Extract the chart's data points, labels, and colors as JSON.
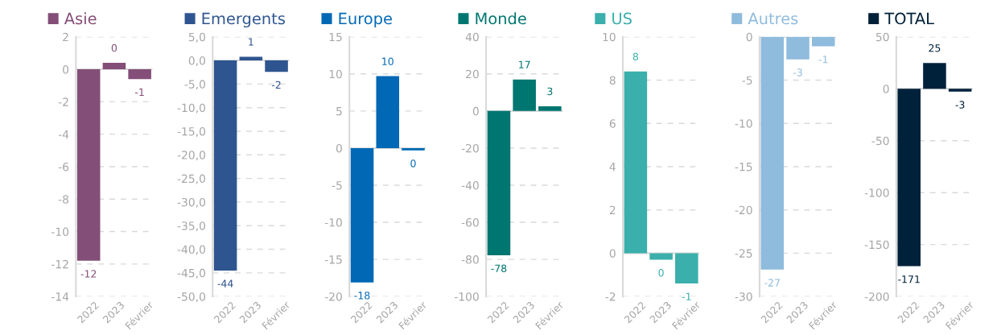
{
  "chart_data": [
    {
      "type": "bar",
      "categories": [
        "2022",
        "2023",
        "Février"
      ],
      "series": [
        {
          "name": "Asie",
          "color": "#834e77",
          "values": [
            -11.8,
            0.4,
            -0.6
          ],
          "value_labels": [
            "-12",
            "0",
            "-1"
          ]
        }
      ],
      "ylim": [
        -14,
        2
      ],
      "yticks": [
        -14,
        -12,
        -10,
        -8,
        -6,
        -4,
        -2,
        0,
        2
      ],
      "grid": "y",
      "legend": "top"
    },
    {
      "type": "bar",
      "categories": [
        "2022",
        "2023",
        "Février"
      ],
      "series": [
        {
          "name": "Emergents",
          "color": "#2f5590",
          "values": [
            -44.5,
            0.8,
            -2.4
          ],
          "value_labels": [
            "-44",
            "1",
            "-2"
          ]
        }
      ],
      "ylim": [
        -50,
        5
      ],
      "yticks": [
        {
          "value": -50,
          "label": "-50,0"
        },
        {
          "value": -45,
          "label": "-45,0"
        },
        {
          "value": -40,
          "label": "-40,0"
        },
        {
          "value": -35,
          "label": "-35,0"
        },
        {
          "value": -30,
          "label": "-30,0"
        },
        {
          "value": -25,
          "label": "-25,0"
        },
        {
          "value": -20,
          "label": "-20,0"
        },
        {
          "value": -15,
          "label": "-15,0"
        },
        {
          "value": -10,
          "label": "-10,0"
        },
        {
          "value": -5,
          "label": "-5,0"
        },
        {
          "value": 0,
          "label": "0,0"
        },
        {
          "value": 5,
          "label": "5,0"
        }
      ],
      "grid": "y",
      "legend": "top"
    },
    {
      "type": "bar",
      "categories": [
        "2022",
        "2023",
        "Février"
      ],
      "series": [
        {
          "name": "Europe",
          "color": "#0068b5",
          "values": [
            -18.1,
            9.7,
            -0.3
          ],
          "value_labels": [
            "-18",
            "10",
            "0"
          ]
        }
      ],
      "ylim": [
        -20,
        15
      ],
      "yticks": [
        -20,
        -15,
        -10,
        -5,
        0,
        5,
        10,
        15
      ],
      "grid": "y",
      "legend": "top"
    },
    {
      "type": "bar",
      "categories": [
        "2022",
        "2023",
        "Février"
      ],
      "series": [
        {
          "name": "Monde",
          "color": "#007670",
          "values": [
            -77.8,
            17,
            2.6
          ],
          "value_labels": [
            "-78",
            "17",
            "3"
          ]
        }
      ],
      "ylim": [
        -100,
        40
      ],
      "yticks": [
        -100,
        -80,
        -60,
        -40,
        -20,
        0,
        20,
        40
      ],
      "grid": "y",
      "legend": "top"
    },
    {
      "type": "bar",
      "categories": [
        "2022",
        "2023",
        "Février"
      ],
      "series": [
        {
          "name": "US",
          "color": "#3aafab",
          "values": [
            8.4,
            -0.3,
            -1.4
          ],
          "value_labels": [
            "8",
            "0",
            "-1"
          ]
        }
      ],
      "ylim": [
        -2,
        10
      ],
      "yticks": [
        -2,
        0,
        2,
        4,
        6,
        8,
        10
      ],
      "grid": "y",
      "legend": "top"
    },
    {
      "type": "bar",
      "categories": [
        "2022",
        "2023",
        "Février"
      ],
      "series": [
        {
          "name": "Autres",
          "color": "#8fbbdd",
          "values": [
            -26.9,
            -2.6,
            -1.1
          ],
          "value_labels": [
            "-27",
            "-3",
            "-1"
          ]
        }
      ],
      "ylim": [
        -30,
        0
      ],
      "yticks": [
        -30,
        -25,
        -20,
        -15,
        -10,
        -5,
        0
      ],
      "grid": "y",
      "legend": "top"
    },
    {
      "type": "bar",
      "categories": [
        "2022",
        "2023",
        "Février"
      ],
      "series": [
        {
          "name": "TOTAL",
          "color": "#00213a",
          "values": [
            -170.8,
            24.9,
            -2.8
          ],
          "value_labels": [
            "-171",
            "25",
            "-3"
          ]
        }
      ],
      "ylim": [
        -200,
        50
      ],
      "yticks": [
        -200,
        -150,
        -100,
        -50,
        0,
        50
      ],
      "grid": "y",
      "legend": "top"
    }
  ]
}
